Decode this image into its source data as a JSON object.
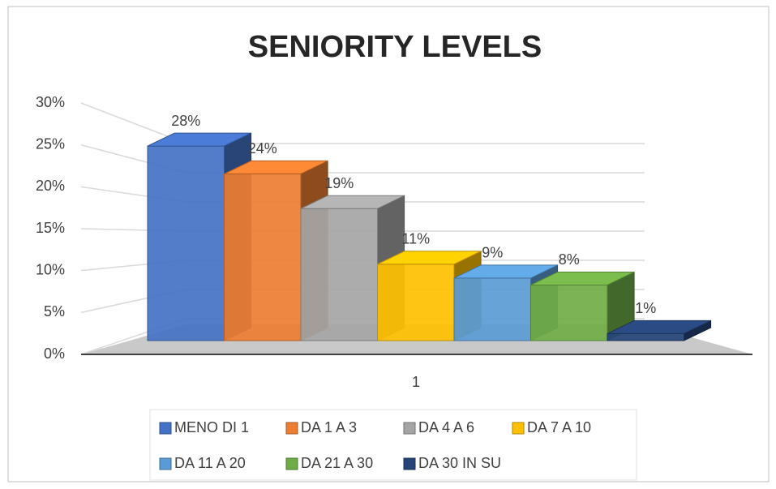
{
  "chart_data": {
    "type": "bar3d",
    "title": "SENIORITY LEVELS",
    "categories": [
      "1"
    ],
    "ylim": [
      0,
      30
    ],
    "yticks": [
      {
        "value": 0,
        "label": "0%"
      },
      {
        "value": 5,
        "label": "5%"
      },
      {
        "value": 10,
        "label": "10%"
      },
      {
        "value": 15,
        "label": "15%"
      },
      {
        "value": 20,
        "label": "20%"
      },
      {
        "value": 25,
        "label": "25%"
      },
      {
        "value": 30,
        "label": "30%"
      }
    ],
    "grid": true,
    "legend": "bottom",
    "series": [
      {
        "name": "MENO DI 1",
        "color": "#4472c4",
        "values": [
          28
        ],
        "value_labels": [
          "28%"
        ]
      },
      {
        "name": "DA 1 A 3",
        "color": "#ed7d31",
        "values": [
          24
        ],
        "value_labels": [
          "24%"
        ]
      },
      {
        "name": "DA 4 A 6",
        "color": "#a5a5a5",
        "values": [
          19
        ],
        "value_labels": [
          "19%"
        ]
      },
      {
        "name": "DA 7 A 10",
        "color": "#ffc000",
        "values": [
          11
        ],
        "value_labels": [
          "11%"
        ]
      },
      {
        "name": "DA 11 A 20",
        "color": "#5b9bd5",
        "values": [
          9
        ],
        "value_labels": [
          "9%"
        ]
      },
      {
        "name": "DA 21 A 30",
        "color": "#70ad47",
        "values": [
          8
        ],
        "value_labels": [
          "8%"
        ]
      },
      {
        "name": "DA 30 IN SU",
        "color": "#264478",
        "values": [
          1
        ],
        "value_labels": [
          "1%"
        ]
      }
    ]
  }
}
